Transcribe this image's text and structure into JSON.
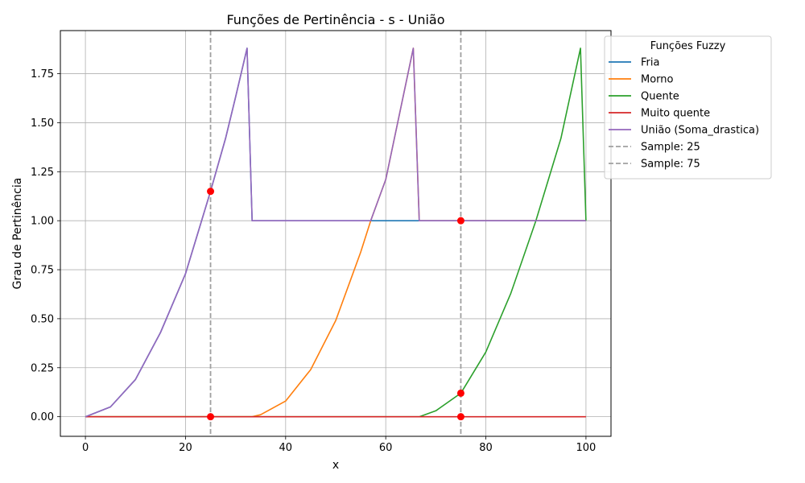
{
  "chart_data": {
    "type": "line",
    "title": "Funções de Pertinência - s - União",
    "xlabel": "x",
    "ylabel": "Grau de Pertinência",
    "xlim": [
      -5,
      105
    ],
    "ylim": [
      -0.1,
      1.97
    ],
    "xticks": [
      0,
      20,
      40,
      60,
      80,
      100
    ],
    "xtick_labels": [
      "0",
      "20",
      "40",
      "60",
      "80",
      "100"
    ],
    "yticks": [
      0,
      0.25,
      0.5,
      0.75,
      1.0,
      1.25,
      1.5,
      1.75
    ],
    "ytick_labels": [
      "0.00",
      "0.25",
      "0.50",
      "0.75",
      "1.00",
      "1.25",
      "1.50",
      "1.75"
    ],
    "grid": true,
    "legend": {
      "title": "Funções Fuzzy",
      "placement": "outside-upper-right"
    },
    "series": [
      {
        "name": "Fria",
        "color": "#1f77b4",
        "style": "solid",
        "points": [
          [
            0,
            0
          ],
          [
            5,
            0.05
          ],
          [
            10,
            0.19
          ],
          [
            15,
            0.43
          ],
          [
            20,
            0.73
          ],
          [
            25,
            1.15
          ],
          [
            28,
            1.42
          ],
          [
            30,
            1.63
          ],
          [
            32.3,
            1.88
          ],
          [
            33.3,
            1.0
          ],
          [
            40,
            1.0
          ],
          [
            50,
            1.0
          ],
          [
            60,
            1.0
          ],
          [
            66.7,
            1.0
          ],
          [
            80,
            1.0
          ],
          [
            90,
            1.0
          ],
          [
            100,
            1.0
          ]
        ]
      },
      {
        "name": "Morno",
        "color": "#ff7f0e",
        "style": "solid",
        "points": [
          [
            0,
            0
          ],
          [
            20,
            0
          ],
          [
            33.3,
            0
          ],
          [
            35,
            0.01
          ],
          [
            40,
            0.08
          ],
          [
            45,
            0.24
          ],
          [
            50,
            0.49
          ],
          [
            53,
            0.7
          ],
          [
            55,
            0.84
          ],
          [
            57,
            1.0
          ],
          [
            60,
            1.21
          ],
          [
            65.5,
            1.88
          ],
          [
            66.7,
            1.0
          ],
          [
            80,
            1.0
          ],
          [
            100,
            1.0
          ]
        ]
      },
      {
        "name": "Quente",
        "color": "#2ca02c",
        "style": "solid",
        "points": [
          [
            0,
            0
          ],
          [
            40,
            0
          ],
          [
            66.7,
            0
          ],
          [
            70,
            0.03
          ],
          [
            75,
            0.12
          ],
          [
            80,
            0.33
          ],
          [
            85,
            0.63
          ],
          [
            90,
            1.0
          ],
          [
            95,
            1.42
          ],
          [
            98.9,
            1.88
          ],
          [
            100,
            1.0
          ]
        ]
      },
      {
        "name": "Muito quente",
        "color": "#d62728",
        "style": "solid",
        "points": [
          [
            0,
            0
          ],
          [
            100,
            0
          ]
        ]
      },
      {
        "name": "União (Soma_drastica)",
        "color": "#9467bd",
        "style": "solid",
        "points": [
          [
            0,
            0
          ],
          [
            5,
            0.05
          ],
          [
            10,
            0.19
          ],
          [
            15,
            0.43
          ],
          [
            20,
            0.73
          ],
          [
            25,
            1.15
          ],
          [
            28,
            1.42
          ],
          [
            30,
            1.63
          ],
          [
            32.3,
            1.88
          ],
          [
            33.3,
            1.0
          ],
          [
            40,
            1.0
          ],
          [
            50,
            1.0
          ],
          [
            57,
            1.0
          ],
          [
            60,
            1.21
          ],
          [
            65.5,
            1.88
          ],
          [
            66.7,
            1.0
          ],
          [
            80,
            1.0
          ],
          [
            90,
            1.0
          ],
          [
            100,
            1.0
          ]
        ]
      },
      {
        "name": "Sample: 25",
        "color": "#a0a0a0",
        "style": "dashed-vertical",
        "x": 25
      },
      {
        "name": "Sample: 75",
        "color": "#a0a0a0",
        "style": "dashed-vertical",
        "x": 75
      }
    ],
    "markers": {
      "color": "#ff0000",
      "points": [
        [
          25,
          1.15
        ],
        [
          25,
          0
        ],
        [
          75,
          1.0
        ],
        [
          75,
          0.12
        ],
        [
          75,
          0
        ]
      ]
    }
  }
}
